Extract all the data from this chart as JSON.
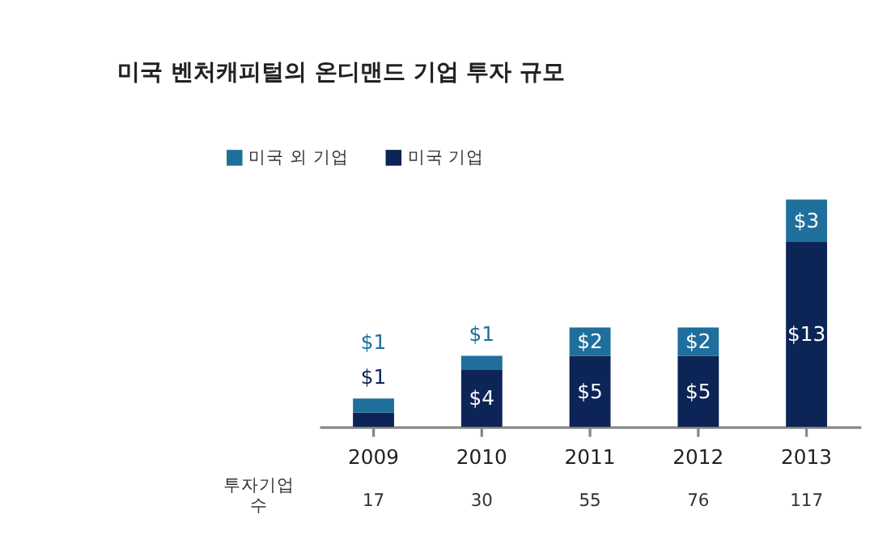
{
  "chart_data": {
    "type": "bar",
    "title": "미국 벤처캐피털의 온디맨드 기업 투자 규모",
    "stacked": true,
    "legend": "top left",
    "categories": [
      "2009",
      "2010",
      "2011",
      "2012",
      "2013"
    ],
    "series": [
      {
        "name": "미국 기업",
        "color": "#0c2456",
        "values": [
          1,
          4,
          5,
          5,
          13
        ],
        "value_labels": [
          "$1",
          "$4",
          "$5",
          "$5",
          "$13"
        ]
      },
      {
        "name": "미국 외 기업",
        "color": "#1f6f9c",
        "values": [
          1,
          1,
          2,
          2,
          3
        ],
        "value_labels": [
          "$1",
          "$1",
          "$2",
          "$2",
          "$3"
        ]
      }
    ],
    "annotations": [
      "투자기업 수",
      "17",
      "30",
      "55",
      "76",
      "117"
    ]
  }
}
